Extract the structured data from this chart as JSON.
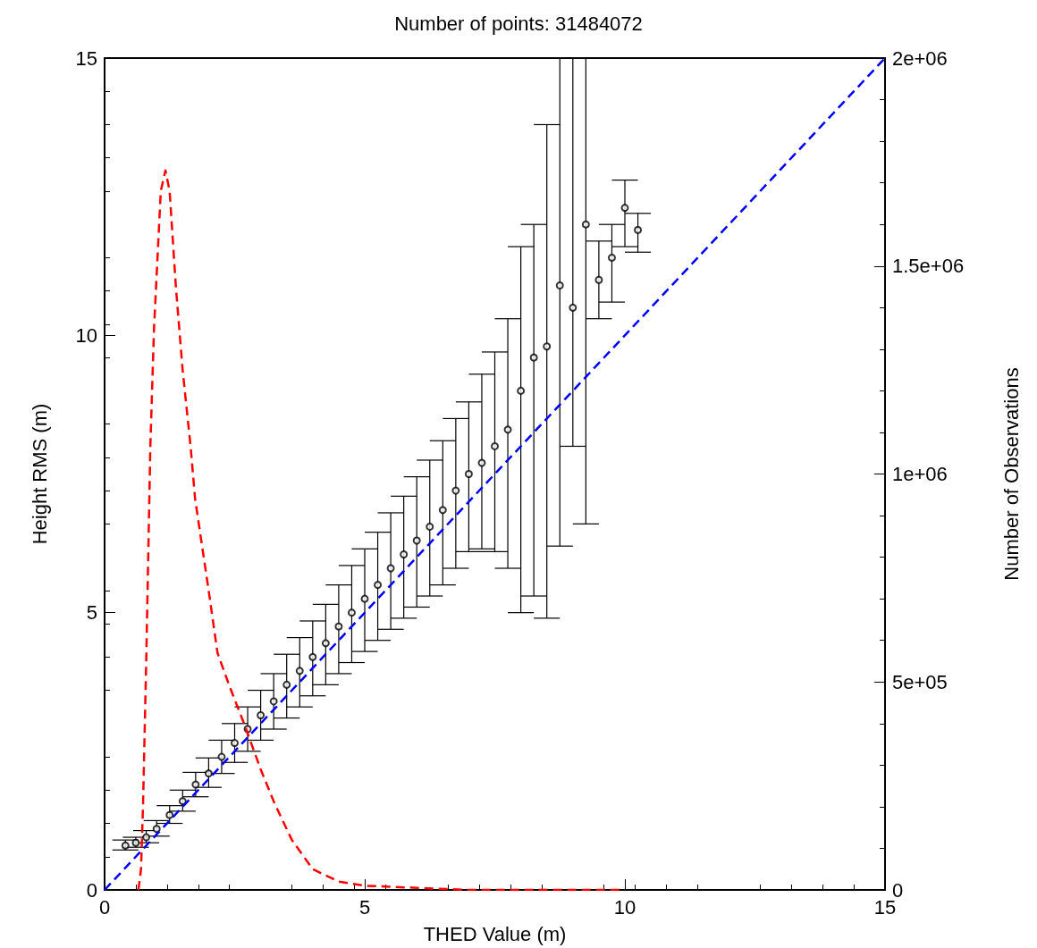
{
  "chart_data": {
    "type": "scatter",
    "title": "Number of points: 31484072",
    "xlabel": "THED Value (m)",
    "ylabel": "Height RMS (m)",
    "y2label": "Number of Observations",
    "xlim": [
      0,
      15
    ],
    "xticks": [
      0,
      5,
      10,
      15
    ],
    "ylim": [
      0,
      15
    ],
    "yticks": [
      0,
      5,
      10,
      15
    ],
    "y2lim": [
      0,
      2000000
    ],
    "y2ticks": [
      0,
      {
        "value": 500000,
        "label": "5e+05"
      },
      {
        "value": 1000000,
        "label": "1e+06"
      },
      {
        "value": 1500000,
        "label": "1.5e+06"
      },
      {
        "value": 2000000,
        "label": "2e+06"
      }
    ],
    "grid": false,
    "series": [
      {
        "color": "#000000",
        "marker": "circle",
        "x": [
          0.4,
          0.6,
          0.8,
          1.0,
          1.25,
          1.5,
          1.75,
          2.0,
          2.25,
          2.5,
          2.75,
          3.0,
          3.25,
          3.5,
          3.75,
          4.0,
          4.25,
          4.5,
          4.75,
          5.0,
          5.25,
          5.5,
          5.75,
          6.0,
          6.25,
          6.5,
          6.75,
          7.0,
          7.25,
          7.5,
          7.75,
          8.0,
          8.25,
          8.5,
          8.75,
          9.0,
          9.25,
          9.5,
          9.75,
          10.0,
          10.25
        ],
        "values": [
          0.8,
          0.85,
          0.95,
          1.1,
          1.35,
          1.6,
          1.9,
          2.1,
          2.4,
          2.65,
          2.9,
          3.15,
          3.4,
          3.7,
          3.95,
          4.2,
          4.45,
          4.75,
          5.0,
          5.25,
          5.5,
          5.8,
          6.05,
          6.3,
          6.55,
          6.85,
          7.2,
          7.5,
          7.7,
          8.0,
          8.3,
          9.0,
          9.6,
          9.8,
          10.9,
          10.5,
          12.0,
          11.0,
          11.4,
          12.3,
          11.9
        ],
        "errors": [
          [
            0.72,
            0.9
          ],
          [
            0.77,
            0.95
          ],
          [
            0.85,
            1.07
          ],
          [
            0.97,
            1.25
          ],
          [
            1.2,
            1.52
          ],
          [
            1.42,
            1.8
          ],
          [
            1.68,
            2.12
          ],
          [
            1.85,
            2.38
          ],
          [
            2.1,
            2.7
          ],
          [
            2.3,
            3.0
          ],
          [
            2.5,
            3.3
          ],
          [
            2.7,
            3.6
          ],
          [
            2.9,
            3.9
          ],
          [
            3.1,
            4.25
          ],
          [
            3.3,
            4.55
          ],
          [
            3.5,
            4.85
          ],
          [
            3.7,
            5.15
          ],
          [
            3.9,
            5.5
          ],
          [
            4.1,
            5.85
          ],
          [
            4.3,
            6.15
          ],
          [
            4.5,
            6.45
          ],
          [
            4.7,
            6.8
          ],
          [
            4.9,
            7.1
          ],
          [
            5.1,
            7.45
          ],
          [
            5.3,
            7.75
          ],
          [
            5.5,
            8.1
          ],
          [
            5.8,
            8.5
          ],
          [
            6.1,
            8.8
          ],
          [
            6.15,
            9.3
          ],
          [
            6.1,
            9.7
          ],
          [
            5.8,
            10.3
          ],
          [
            5.0,
            11.6
          ],
          [
            5.3,
            12.0
          ],
          [
            4.9,
            13.8
          ],
          [
            6.2,
            15
          ],
          [
            8.0,
            15
          ],
          [
            6.6,
            15
          ],
          [
            10.3,
            11.7
          ],
          [
            10.6,
            12.0
          ],
          [
            11.6,
            12.8
          ],
          [
            11.5,
            12.2
          ]
        ]
      },
      {
        "type": "line",
        "color": "#0000ff",
        "marker": "none",
        "line_style": "dashed",
        "x": [
          0,
          15
        ],
        "values": [
          0,
          15
        ]
      },
      {
        "type": "line",
        "color": "#ff0000",
        "marker": "none",
        "line_style": "dashed",
        "axis": "y2",
        "x": [
          0.65,
          0.7,
          0.74,
          0.8,
          0.88,
          0.95,
          1.08,
          1.17,
          1.25,
          1.37,
          1.5,
          1.65,
          1.74,
          2.0,
          2.17,
          2.4,
          2.68,
          3.0,
          3.26,
          3.6,
          4.0,
          4.5,
          5.0,
          6.0,
          7.0,
          10.0
        ],
        "values": [
          0,
          50000,
          210000,
          550000,
          1070000,
          1350000,
          1680000,
          1730000,
          1680000,
          1450000,
          1250000,
          1070000,
          940000,
          720000,
          570000,
          490000,
          400000,
          290000,
          210000,
          120000,
          50000,
          20000,
          10000,
          5000,
          0,
          0
        ]
      }
    ]
  }
}
